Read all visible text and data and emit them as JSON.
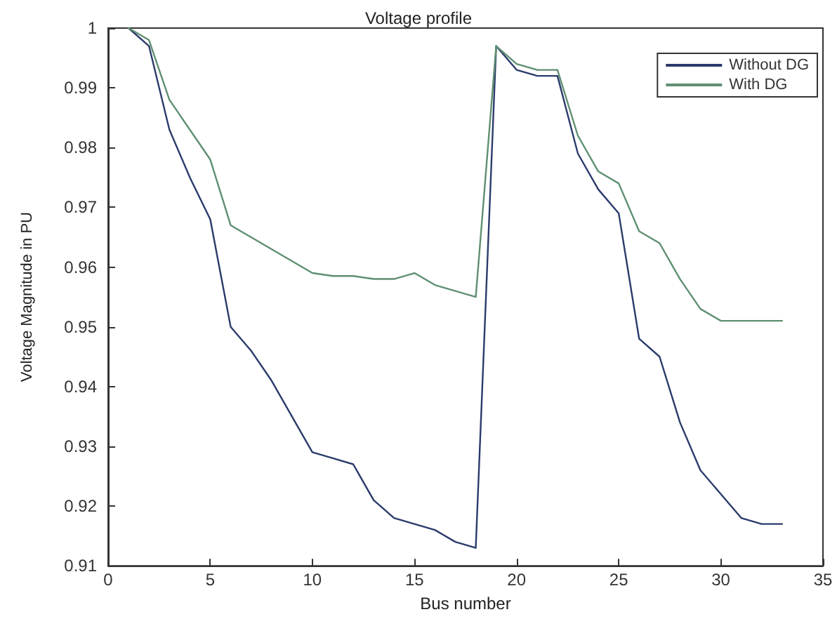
{
  "chart_data": {
    "type": "line",
    "title": "Voltage profile",
    "xlabel": "Bus number",
    "ylabel": "Voltage Magnitude in PU",
    "x": [
      1,
      2,
      3,
      4,
      5,
      6,
      7,
      8,
      9,
      10,
      11,
      12,
      13,
      14,
      15,
      16,
      17,
      18,
      19,
      20,
      21,
      22,
      23,
      24,
      25,
      26,
      27,
      28,
      29,
      30,
      31,
      32,
      33
    ],
    "series": [
      {
        "name": "Without DG",
        "color": "#2b3b6b",
        "values": [
          1,
          0.997,
          0.983,
          0.975,
          0.968,
          0.95,
          0.946,
          0.941,
          0.935,
          0.929,
          0.928,
          0.927,
          0.921,
          0.918,
          0.917,
          0.916,
          0.914,
          0.913,
          0.997,
          0.993,
          0.992,
          0.992,
          0.979,
          0.973,
          0.969,
          0.948,
          0.945,
          0.934,
          0.926,
          0.922,
          0.918,
          0.917,
          0.917
        ]
      },
      {
        "name": "With DG",
        "color": "#5f8f72",
        "values": [
          1,
          0.998,
          0.988,
          0.983,
          0.978,
          0.967,
          0.965,
          0.963,
          0.961,
          0.959,
          0.9585,
          0.9585,
          0.958,
          0.958,
          0.959,
          0.957,
          0.956,
          0.955,
          0.997,
          0.994,
          0.993,
          0.993,
          0.982,
          0.976,
          0.974,
          0.966,
          0.964,
          0.958,
          0.953,
          0.951,
          0.951,
          0.951,
          0.951
        ]
      }
    ],
    "xlim": [
      0,
      35
    ],
    "xticks": [
      0,
      5,
      10,
      15,
      20,
      25,
      30,
      35
    ],
    "ylim": [
      0.91,
      1
    ],
    "yticks": [
      0.91,
      0.92,
      0.93,
      0.94,
      0.95,
      0.96,
      0.97,
      0.98,
      0.99,
      1
    ],
    "grid": false,
    "legend": "top right",
    "marker": "none",
    "line_style": "solid"
  }
}
